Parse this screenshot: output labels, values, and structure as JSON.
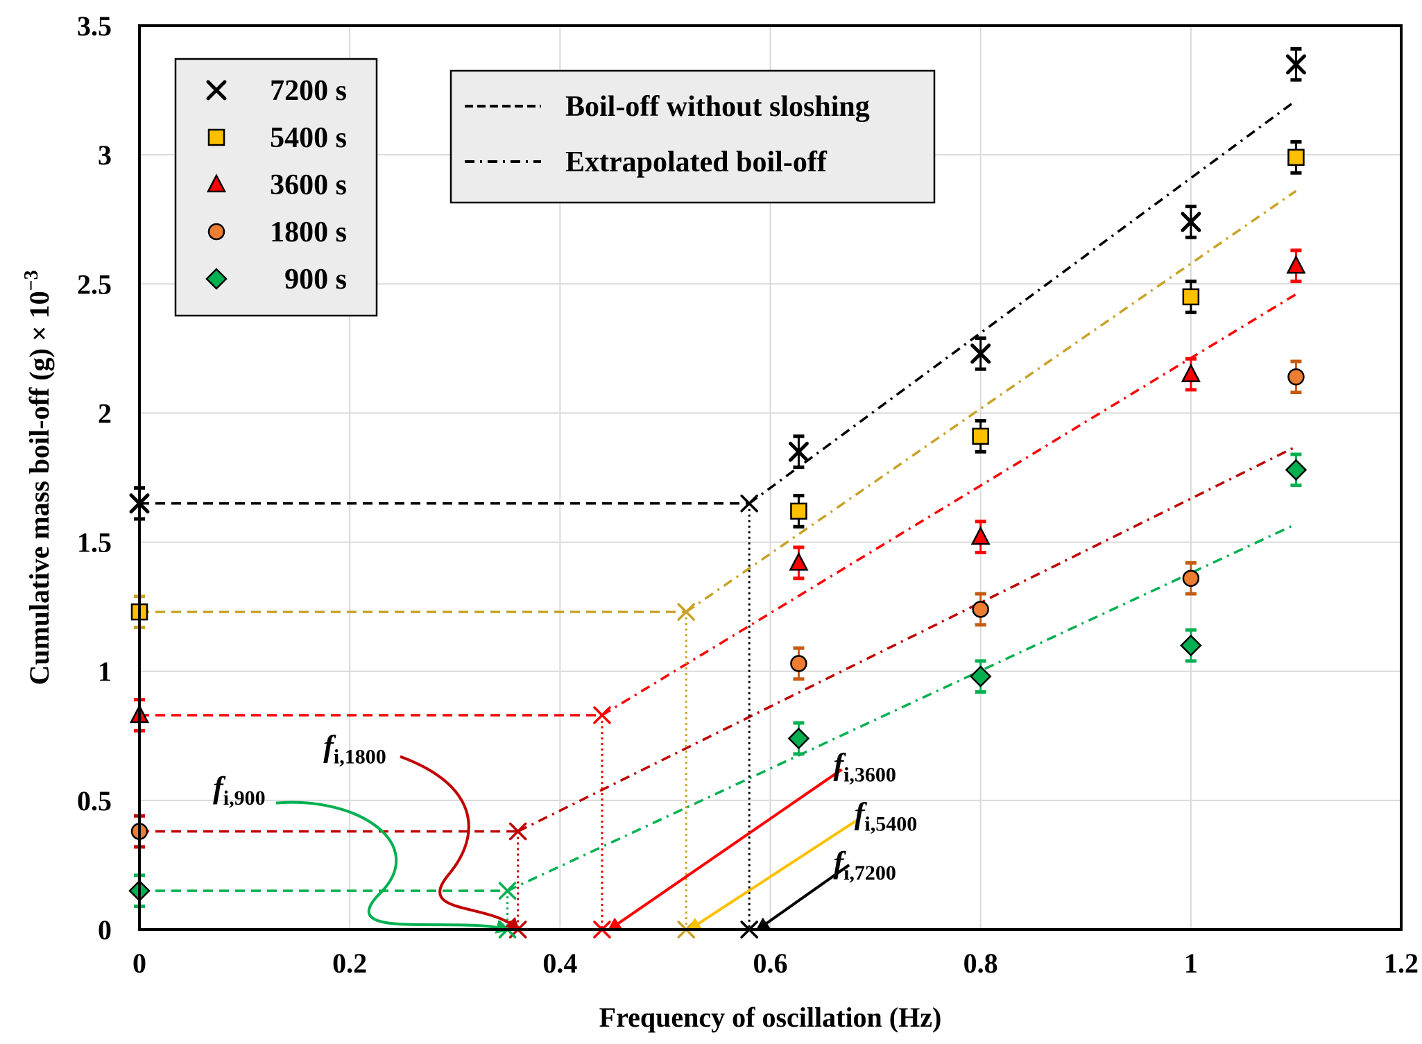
{
  "chart_data": {
    "type": "scatter",
    "xlabel": "Frequency of oscillation (Hz)",
    "ylabel": "Cumulative mass boil-off (g) × 10",
    "ylabel_exponent": "−3",
    "xlim": [
      0,
      1.2
    ],
    "ylim": [
      0,
      3.5
    ],
    "xticks": [
      0,
      0.2,
      0.4,
      0.6,
      0.8,
      1.0,
      1.2
    ],
    "xtick_labels": [
      "0",
      "0.2",
      "0.4",
      "0.6",
      "0.8",
      "1",
      "1.2"
    ],
    "yticks": [
      0,
      0.5,
      1,
      1.5,
      2,
      2.5,
      3,
      3.5
    ],
    "ytick_labels": [
      "0",
      "0.5",
      "1",
      "1.5",
      "2",
      "2.5",
      "3",
      "3.5"
    ],
    "grid": true,
    "series": [
      {
        "name": "7200 s",
        "marker": "x",
        "color": "#000000",
        "fill": "#000000",
        "fit_color": "#000000",
        "x": [
          0.627,
          0.8,
          1.0,
          1.1
        ],
        "y": [
          1.85,
          2.23,
          2.74,
          3.35
        ],
        "err": 0.06,
        "no_slosh": 1.65,
        "f_i": 0.58,
        "fit_end": 3.21,
        "f_label_sub": "i,7200",
        "f_label_pos": [
          0.66,
          0.22
        ],
        "arrow_from": [
          0.675,
          0.25
        ],
        "arrow_to": [
          0.588,
          0.0
        ]
      },
      {
        "name": "5400 s",
        "marker": "square",
        "color": "#000000",
        "fill": "#FFC000",
        "fit_color": "#C9A227",
        "x": [
          0.627,
          0.8,
          1.0,
          1.1
        ],
        "y": [
          1.62,
          1.91,
          2.45,
          2.99
        ],
        "err": 0.06,
        "no_slosh": 1.23,
        "f_i": 0.52,
        "fit_end": 2.86,
        "f_label_sub": "i,5400",
        "f_label_pos": [
          0.68,
          0.41
        ],
        "arrow_from": [
          0.685,
          0.43
        ],
        "arrow_to": [
          0.523,
          0.0
        ]
      },
      {
        "name": "3600 s",
        "marker": "triangle",
        "color": "#000000",
        "fill": "#FF0000",
        "fit_color": "#FF0000",
        "x": [
          0.627,
          0.8,
          1.0,
          1.1
        ],
        "y": [
          1.42,
          1.52,
          2.15,
          2.57
        ],
        "err": 0.06,
        "no_slosh": 0.83,
        "f_i": 0.44,
        "fit_end": 2.46,
        "f_label_sub": "i,3600",
        "f_label_pos": [
          0.66,
          0.6
        ],
        "arrow_from": [
          0.668,
          0.62
        ],
        "arrow_to": [
          0.447,
          0.0
        ]
      },
      {
        "name": "1800 s",
        "marker": "circle",
        "color": "#000000",
        "fill": "#ED7D31",
        "fit_color": "#C00000",
        "x": [
          0.627,
          0.8,
          1.0,
          1.1
        ],
        "y": [
          1.03,
          1.24,
          1.36,
          2.14
        ],
        "err": 0.06,
        "no_slosh": 0.38,
        "f_i": 0.36,
        "fit_end": 1.87,
        "f_label_sub": "i,1800",
        "f_label_pos": [
          0.175,
          0.67
        ],
        "arrow_from": [
          0.248,
          0.67
        ],
        "arrow_to": [
          0.36,
          0.0
        ]
      },
      {
        "name": "900 s",
        "marker": "diamond",
        "color": "#000000",
        "fill": "#00B050",
        "fit_color": "#00B050",
        "x": [
          0.627,
          0.8,
          1.0,
          1.1
        ],
        "y": [
          0.74,
          0.98,
          1.1,
          1.78
        ],
        "err": 0.06,
        "no_slosh": 0.15,
        "f_i": 0.35,
        "fit_end": 1.57,
        "f_label_sub": "i,900",
        "f_label_pos": [
          0.07,
          0.51
        ],
        "arrow_from": [
          0.13,
          0.49
        ],
        "arrow_to": [
          0.35,
          0.0
        ]
      }
    ],
    "legend": {
      "placement": "top-left",
      "entries": [
        "7200 s",
        "5400 s",
        "3600 s",
        "1800 s",
        "900 s"
      ]
    },
    "line_legend": {
      "placement": "top-center",
      "entries": [
        {
          "style": "dashed",
          "label": "Boil-off without sloshing"
        },
        {
          "style": "dash-dot",
          "label": "Extrapolated boil-off"
        }
      ]
    },
    "annotation_symbol": "f"
  }
}
